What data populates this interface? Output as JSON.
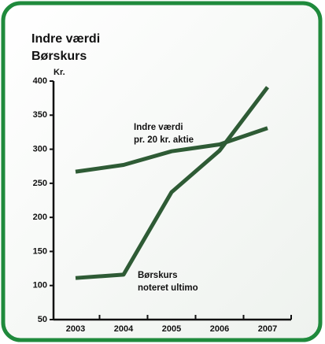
{
  "chart_data": {
    "type": "line",
    "title_lines": [
      "Indre værdi",
      "Børskurs"
    ],
    "ylabel": "Kr.",
    "categories": [
      "2003",
      "2004",
      "2005",
      "2006",
      "2007"
    ],
    "series": [
      {
        "name": "Indre værdi",
        "color": "#2e5b35",
        "values": [
          267,
          277,
          297,
          307,
          331
        ]
      },
      {
        "name": "Børskurs",
        "color": "#2e5b35",
        "values": [
          111,
          116,
          237,
          298,
          391
        ]
      }
    ],
    "annotations": [
      {
        "lines": [
          "Indre værdi",
          "pr. 20 kr. aktie"
        ]
      },
      {
        "lines": [
          "Børskurs",
          "noteret ultimo"
        ]
      }
    ],
    "ylim": [
      50,
      400
    ],
    "yticks": [
      50,
      100,
      150,
      200,
      250,
      300,
      350,
      400
    ],
    "grid": false
  }
}
